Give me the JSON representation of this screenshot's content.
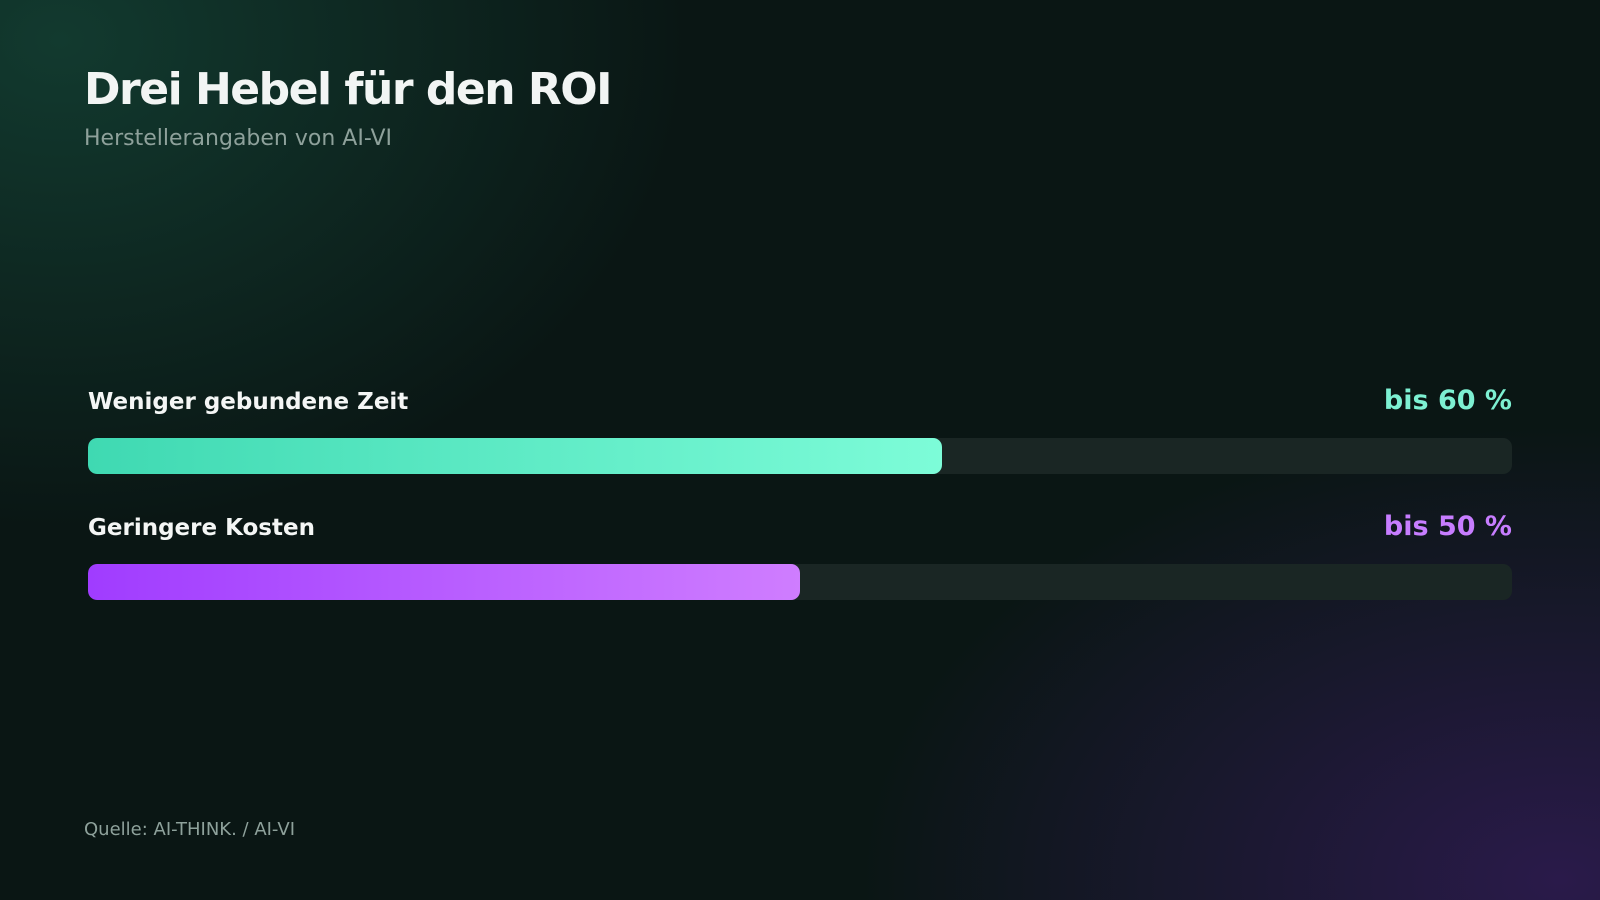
{
  "header": {
    "title": "Drei Hebel für den ROI",
    "subtitle": "Herstellerangaben von AI-VI"
  },
  "chart_data": {
    "type": "bar",
    "orientation": "horizontal",
    "title": "Drei Hebel für den ROI",
    "subtitle": "Herstellerangaben von AI-VI",
    "categories": [
      "Weniger gebundene Zeit",
      "Geringere Kosten"
    ],
    "values": [
      60,
      50
    ],
    "value_labels": [
      "bis 60 %",
      "bis 50 %"
    ],
    "unit": "%",
    "xlim": [
      0,
      100
    ],
    "colors": {
      "bar1": [
        "#3fd9b2",
        "#7dfcd8"
      ],
      "bar2": [
        "#a03cff",
        "#cf7dff"
      ],
      "track": "#1a2624"
    }
  },
  "metrics": [
    {
      "label": "Weniger gebundene Zeit",
      "value_text": "bis 60 %",
      "percent": 60,
      "color": "#7df0d2"
    },
    {
      "label": "Geringere Kosten",
      "value_text": "bis 50 %",
      "percent": 50,
      "color": "#c77dff"
    }
  ],
  "footer": {
    "source": "Quelle: AI-THINK. / AI-VI"
  }
}
